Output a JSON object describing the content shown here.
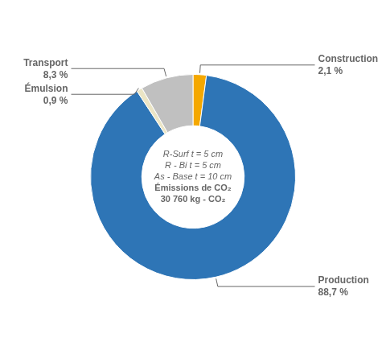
{
  "chart_data": {
    "type": "doughnut",
    "categories": [
      "Construction",
      "Production",
      "Émulsion",
      "Transport"
    ],
    "values": [
      2.1,
      88.7,
      0.9,
      8.3
    ],
    "value_labels": [
      "2,1 %",
      "88,7 %",
      "0,9 %",
      "8,3 %"
    ],
    "colors": [
      "#F5A800",
      "#2E75B6",
      "#EBE5C5",
      "#C0C0C0"
    ],
    "data_labels": true,
    "legend": false,
    "annotations": [
      "R-Surf t = 5 cm",
      "R - Bi t = 5 cm",
      "As - Base t = 10 cm",
      "Émissions de CO₂",
      "30 760 kg - CO₂"
    ]
  }
}
